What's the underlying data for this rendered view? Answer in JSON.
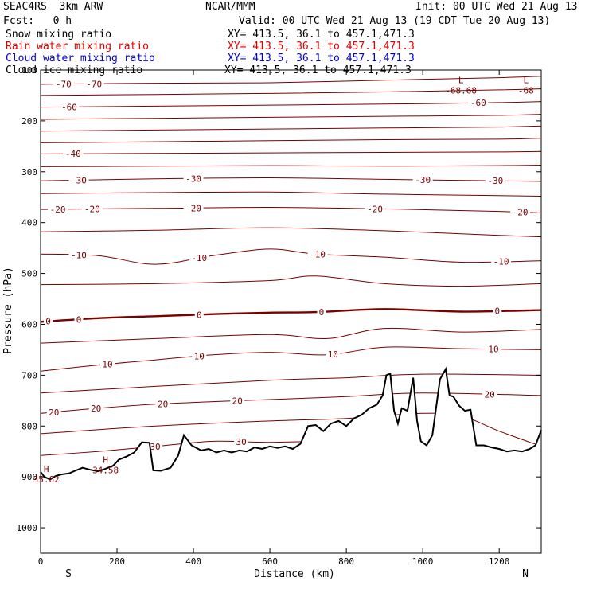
{
  "header": {
    "model": "SEAC4RS  3km ARW",
    "center": "NCAR/MMM",
    "init": "Init: 00 UTC Wed 21 Aug 13",
    "fcst": "Fcst:   0 h",
    "valid": "Valid: 00 UTC Wed 21 Aug 13 (19 CDT Tue 20 Aug 13)"
  },
  "legend": [
    {
      "label": "Snow mixing ratio",
      "color": "#000000",
      "xy": "XY= 413.5, 36.1 to 457.1,471.3"
    },
    {
      "label": "Rain water mixing ratio",
      "color": "#e00000",
      "xy": "XY= 413.5, 36.1 to 457.1,471.3"
    },
    {
      "label": "Cloud water mixing ratio",
      "color": "#0000d0",
      "xy": "XY= 413.5, 36.1 to 457.1,471.3"
    },
    {
      "label": "Cloud ice mixing ratio",
      "color": "#000000",
      "xy": "XY= 413.5, 36.1 to 457.1,471.3"
    }
  ],
  "chart_data": {
    "type": "line",
    "xlabel": "Distance (km)",
    "ylabel": "Pressure (hPa)",
    "xlim": [
      0,
      1310
    ],
    "ylim": [
      1050,
      100
    ],
    "x_ticks": [
      0,
      200,
      400,
      600,
      800,
      1000,
      1200
    ],
    "y_ticks": [
      100,
      200,
      300,
      400,
      500,
      600,
      700,
      800,
      900,
      1000
    ],
    "x_end_labels": [
      "S",
      "N"
    ],
    "contour_color": "#7a0000",
    "temperature_contours": [
      {
        "level": -70,
        "x": [
          0,
          300,
          600,
          900,
          1200,
          1310
        ],
        "p": [
          128,
          126,
          125,
          120,
          115,
          112
        ],
        "labels": [
          {
            "text": "-70",
            "x": 60
          },
          {
            "text": "-70",
            "x": 140
          }
        ]
      },
      {
        "level": -65,
        "x": [
          0,
          300,
          600,
          900,
          1200,
          1310
        ],
        "p": [
          150,
          148,
          146,
          143,
          139,
          137
        ],
        "labels": []
      },
      {
        "level": -60,
        "x": [
          0,
          300,
          600,
          900,
          1200,
          1310
        ],
        "p": [
          173,
          171,
          169,
          167,
          164,
          162
        ],
        "labels": [
          {
            "text": "-60",
            "x": 75
          },
          {
            "text": "-60",
            "x": 1145
          }
        ]
      },
      {
        "level": -55,
        "x": [
          0,
          300,
          600,
          900,
          1200,
          1310
        ],
        "p": [
          197,
          195,
          193,
          191,
          189,
          187
        ],
        "labels": []
      },
      {
        "level": -50,
        "x": [
          0,
          300,
          600,
          900,
          1200,
          1310
        ],
        "p": [
          220,
          218,
          216,
          214,
          212,
          210
        ],
        "labels": []
      },
      {
        "level": -45,
        "x": [
          0,
          300,
          600,
          900,
          1200,
          1310
        ],
        "p": [
          243,
          241,
          239,
          237,
          236,
          234
        ],
        "labels": []
      },
      {
        "level": -40,
        "x": [
          0,
          300,
          600,
          900,
          1200,
          1310
        ],
        "p": [
          265,
          264,
          263,
          262,
          261,
          260
        ],
        "labels": [
          {
            "text": "-40",
            "x": 85
          }
        ]
      },
      {
        "level": -35,
        "x": [
          0,
          300,
          600,
          900,
          1200,
          1310
        ],
        "p": [
          290,
          289,
          288,
          289,
          288,
          287
        ],
        "labels": []
      },
      {
        "level": -30,
        "x": [
          0,
          300,
          600,
          900,
          1200,
          1310
        ],
        "p": [
          318,
          314,
          312,
          315,
          318,
          319
        ],
        "labels": [
          {
            "text": "-30",
            "x": 100
          },
          {
            "text": "-30",
            "x": 400
          },
          {
            "text": "-30",
            "x": 1000
          },
          {
            "text": "-30",
            "x": 1190
          }
        ]
      },
      {
        "level": -25,
        "x": [
          0,
          300,
          600,
          900,
          1200,
          1310
        ],
        "p": [
          343,
          341,
          340,
          344,
          347,
          348
        ],
        "labels": []
      },
      {
        "level": -20,
        "x": [
          0,
          300,
          600,
          900,
          1200,
          1310
        ],
        "p": [
          374,
          372,
          370,
          373,
          378,
          381
        ],
        "labels": [
          {
            "text": "-20",
            "x": 45
          },
          {
            "text": "-20",
            "x": 135
          },
          {
            "text": "-20",
            "x": 400
          },
          {
            "text": "-20",
            "x": 875
          },
          {
            "text": "-20",
            "x": 1255
          }
        ]
      },
      {
        "level": -15,
        "x": [
          0,
          300,
          600,
          900,
          1200,
          1310
        ],
        "p": [
          418,
          415,
          410,
          416,
          425,
          428
        ],
        "labels": []
      },
      {
        "level": -10,
        "x": [
          0,
          150,
          300,
          450,
          600,
          720,
          900,
          1100,
          1310
        ],
        "p": [
          462,
          465,
          482,
          465,
          452,
          462,
          468,
          478,
          475
        ],
        "labels": [
          {
            "text": "-10",
            "x": 100
          },
          {
            "text": "-10",
            "x": 415
          },
          {
            "text": "-10",
            "x": 725
          },
          {
            "text": "-10",
            "x": 1205
          }
        ]
      },
      {
        "level": -5,
        "x": [
          0,
          300,
          600,
          720,
          900,
          1100,
          1310
        ],
        "p": [
          522,
          520,
          514,
          505,
          520,
          525,
          520
        ],
        "labels": []
      },
      {
        "level": 0,
        "x": [
          0,
          150,
          300,
          450,
          600,
          720,
          900,
          1100,
          1310
        ],
        "p": [
          595,
          588,
          584,
          580,
          577,
          576,
          570,
          575,
          572
        ],
        "labels": [
          {
            "text": "0",
            "x": 20
          },
          {
            "text": "0",
            "x": 100
          },
          {
            "text": "0",
            "x": 415
          },
          {
            "text": "0",
            "x": 735
          },
          {
            "text": "0",
            "x": 1195
          }
        ]
      },
      {
        "level": 5,
        "x": [
          0,
          300,
          600,
          750,
          900,
          1100,
          1310
        ],
        "p": [
          637,
          628,
          620,
          628,
          608,
          615,
          610
        ],
        "labels": []
      },
      {
        "level": 10,
        "x": [
          0,
          150,
          300,
          450,
          600,
          750,
          900,
          1100,
          1310
        ],
        "p": [
          692,
          680,
          670,
          660,
          655,
          660,
          645,
          648,
          650
        ],
        "labels": [
          {
            "text": "10",
            "x": 175
          },
          {
            "text": "10",
            "x": 415
          },
          {
            "text": "10",
            "x": 765
          },
          {
            "text": "10",
            "x": 1185
          }
        ]
      },
      {
        "level": 15,
        "x": [
          0,
          300,
          600,
          800,
          1000,
          1310
        ],
        "p": [
          735,
          722,
          710,
          705,
          698,
          700
        ],
        "labels": []
      },
      {
        "level": 20,
        "x": [
          0,
          150,
          300,
          450,
          600,
          800,
          1000,
          1310
        ],
        "p": [
          775,
          765,
          757,
          752,
          748,
          742,
          735,
          740
        ],
        "labels": [
          {
            "text": "20",
            "x": 35
          },
          {
            "text": "20",
            "x": 145
          },
          {
            "text": "20",
            "x": 515
          },
          {
            "text": "20",
            "x": 320
          },
          {
            "text": "20",
            "x": 1175
          }
        ]
      },
      {
        "level": 25,
        "x": [
          0,
          300,
          600,
          800,
          1000,
          1100,
          1200,
          1310
        ],
        "p": [
          815,
          800,
          790,
          785,
          775,
          780,
          810,
          840
        ],
        "labels": []
      },
      {
        "level": 30,
        "x": [
          0,
          150,
          300,
          450,
          600,
          800
        ],
        "p": [
          858,
          850,
          840,
          830,
          832,
          828
        ],
        "labels": [
          {
            "text": "30",
            "x": 300
          },
          {
            "text": "30",
            "x": 525
          }
        ]
      }
    ],
    "extrema": [
      {
        "text": "L",
        "x": 1100,
        "p": 135,
        "value": "-68.68"
      },
      {
        "text": "L",
        "x": 1270,
        "p": 135,
        "value": "-68"
      },
      {
        "text": "H",
        "x": 170,
        "p": 882,
        "value": "34.58"
      },
      {
        "text": "H",
        "x": 15,
        "p": 900,
        "value": "35.62"
      }
    ],
    "terrain": {
      "x": [
        0,
        10,
        25,
        40,
        55,
        75,
        90,
        110,
        130,
        150,
        170,
        190,
        205,
        225,
        245,
        265,
        285,
        295,
        315,
        340,
        360,
        375,
        395,
        420,
        440,
        460,
        480,
        500,
        520,
        540,
        560,
        580,
        600,
        620,
        640,
        660,
        680,
        700,
        720,
        740,
        760,
        780,
        800,
        820,
        840,
        860,
        880,
        895,
        905,
        915,
        925,
        935,
        945,
        960,
        975,
        985,
        995,
        1010,
        1025,
        1045,
        1060,
        1070,
        1080,
        1095,
        1110,
        1125,
        1140,
        1160,
        1180,
        1200,
        1220,
        1240,
        1260,
        1280,
        1295,
        1310
      ],
      "p": [
        890,
        900,
        905,
        898,
        895,
        893,
        888,
        882,
        886,
        889,
        884,
        878,
        866,
        860,
        852,
        832,
        833,
        887,
        888,
        882,
        858,
        818,
        838,
        848,
        845,
        852,
        848,
        852,
        848,
        850,
        842,
        845,
        840,
        843,
        840,
        845,
        835,
        800,
        798,
        810,
        795,
        790,
        800,
        785,
        778,
        765,
        758,
        740,
        700,
        697,
        770,
        795,
        765,
        770,
        705,
        790,
        830,
        838,
        818,
        708,
        688,
        740,
        742,
        760,
        770,
        768,
        838,
        838,
        842,
        845,
        850,
        848,
        850,
        845,
        838,
        808
      ]
    }
  }
}
